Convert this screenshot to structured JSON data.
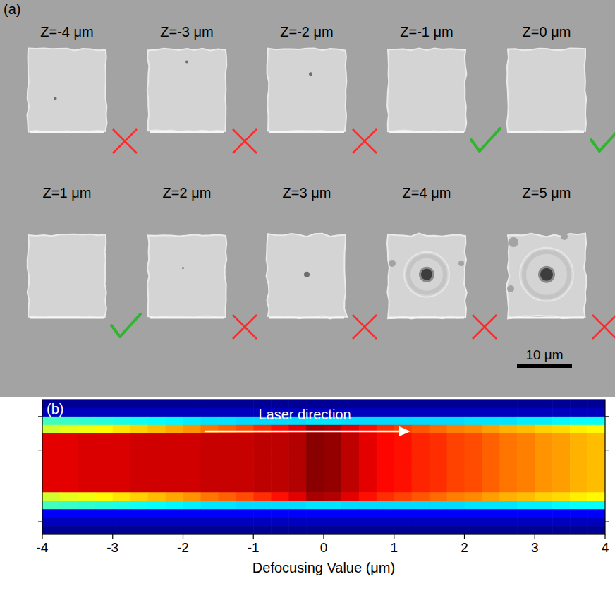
{
  "panel_a": {
    "label": "(a)",
    "scale_bar": "10 μm",
    "samples": [
      {
        "label": "Z=-4 μm",
        "pass": false
      },
      {
        "label": "Z=-3 μm",
        "pass": false
      },
      {
        "label": "Z=-2 μm",
        "pass": false
      },
      {
        "label": "Z=-1 μm",
        "pass": true
      },
      {
        "label": "Z=0 μm",
        "pass": true
      },
      {
        "label": "Z=1 μm",
        "pass": true
      },
      {
        "label": "Z=2 μm",
        "pass": false
      },
      {
        "label": "Z=3 μm",
        "pass": false
      },
      {
        "label": "Z=4 μm",
        "pass": false
      },
      {
        "label": "Z=5 μm",
        "pass": false
      }
    ]
  },
  "panel_b": {
    "label": "(b)"
  },
  "chart_data": {
    "type": "heatmap",
    "xlabel": "Defocusing Value (μm)",
    "annotation": "Laser direction",
    "xlim": [
      -4,
      4
    ],
    "xticks": [
      -4,
      -3,
      -2,
      -1,
      0,
      1,
      2,
      3,
      4
    ],
    "ylim": [
      0,
      16
    ],
    "yticks": [
      2,
      6,
      14.5
    ],
    "tick_labels": "x",
    "x": [
      -3.875,
      -3.625,
      -3.375,
      -3.125,
      -2.875,
      -2.625,
      -2.375,
      -2.125,
      -1.875,
      -1.625,
      -1.375,
      -1.125,
      -0.875,
      -0.625,
      -0.375,
      -0.125,
      0.125,
      0.375,
      0.625,
      0.875,
      1.125,
      1.375,
      1.625,
      1.875,
      2.125,
      2.375,
      2.625,
      2.875,
      3.125,
      3.375,
      3.625,
      3.875
    ],
    "values": [
      [
        0.02,
        0.02,
        0.02,
        0.02,
        0.02,
        0.02,
        0.02,
        0.02,
        0.02,
        0.02,
        0.02,
        0.02,
        0.02,
        0.02,
        0.02,
        0.02,
        0.02,
        0.02,
        0.02,
        0.02,
        0.02,
        0.02,
        0.02,
        0.02,
        0.02,
        0.02,
        0.02,
        0.02,
        0.02,
        0.02,
        0.02,
        0.02
      ],
      [
        0.06,
        0.06,
        0.06,
        0.06,
        0.06,
        0.06,
        0.06,
        0.06,
        0.06,
        0.06,
        0.06,
        0.06,
        0.06,
        0.06,
        0.06,
        0.06,
        0.06,
        0.06,
        0.06,
        0.06,
        0.06,
        0.06,
        0.06,
        0.06,
        0.06,
        0.06,
        0.06,
        0.06,
        0.06,
        0.06,
        0.06,
        0.06
      ],
      [
        0.44,
        0.43,
        0.42,
        0.41,
        0.4,
        0.39,
        0.38,
        0.37,
        0.36,
        0.35,
        0.35,
        0.34,
        0.34,
        0.34,
        0.34,
        0.35,
        0.35,
        0.34,
        0.34,
        0.34,
        0.34,
        0.34,
        0.34,
        0.34,
        0.35,
        0.35,
        0.35,
        0.36,
        0.36,
        0.37,
        0.38,
        0.38
      ],
      [
        0.58,
        0.6,
        0.61,
        0.63,
        0.65,
        0.67,
        0.69,
        0.71,
        0.73,
        0.76,
        0.78,
        0.8,
        0.83,
        0.86,
        0.9,
        0.96,
        0.95,
        0.9,
        0.86,
        0.83,
        0.81,
        0.79,
        0.77,
        0.75,
        0.74,
        0.72,
        0.7,
        0.69,
        0.67,
        0.66,
        0.64,
        0.63
      ],
      [
        0.9,
        0.9,
        0.91,
        0.91,
        0.91,
        0.92,
        0.92,
        0.92,
        0.92,
        0.93,
        0.93,
        0.93,
        0.94,
        0.94,
        0.95,
        0.99,
        0.98,
        0.94,
        0.9,
        0.87,
        0.86,
        0.84,
        0.83,
        0.81,
        0.8,
        0.78,
        0.76,
        0.75,
        0.73,
        0.72,
        0.7,
        0.69
      ],
      [
        0.9,
        0.9,
        0.91,
        0.91,
        0.91,
        0.92,
        0.92,
        0.92,
        0.92,
        0.93,
        0.93,
        0.93,
        0.94,
        0.94,
        0.95,
        0.99,
        0.98,
        0.94,
        0.9,
        0.87,
        0.86,
        0.84,
        0.83,
        0.81,
        0.8,
        0.78,
        0.76,
        0.75,
        0.73,
        0.72,
        0.7,
        0.69
      ],
      [
        0.9,
        0.9,
        0.91,
        0.91,
        0.91,
        0.92,
        0.92,
        0.92,
        0.92,
        0.93,
        0.93,
        0.93,
        0.94,
        0.94,
        0.95,
        0.99,
        0.98,
        0.94,
        0.9,
        0.87,
        0.86,
        0.84,
        0.83,
        0.81,
        0.8,
        0.78,
        0.76,
        0.75,
        0.73,
        0.72,
        0.7,
        0.69
      ],
      [
        0.9,
        0.9,
        0.91,
        0.91,
        0.91,
        0.92,
        0.92,
        0.92,
        0.92,
        0.93,
        0.93,
        0.93,
        0.94,
        0.94,
        0.95,
        0.99,
        0.98,
        0.94,
        0.9,
        0.87,
        0.86,
        0.84,
        0.83,
        0.81,
        0.8,
        0.78,
        0.76,
        0.75,
        0.73,
        0.72,
        0.7,
        0.69
      ],
      [
        0.9,
        0.9,
        0.91,
        0.91,
        0.91,
        0.92,
        0.92,
        0.92,
        0.92,
        0.93,
        0.93,
        0.93,
        0.94,
        0.94,
        0.95,
        0.99,
        0.98,
        0.94,
        0.9,
        0.87,
        0.86,
        0.84,
        0.83,
        0.81,
        0.8,
        0.78,
        0.76,
        0.75,
        0.73,
        0.72,
        0.7,
        0.69
      ],
      [
        0.9,
        0.9,
        0.91,
        0.91,
        0.91,
        0.92,
        0.92,
        0.92,
        0.92,
        0.93,
        0.93,
        0.93,
        0.94,
        0.94,
        0.95,
        0.99,
        0.98,
        0.94,
        0.9,
        0.87,
        0.86,
        0.84,
        0.83,
        0.81,
        0.8,
        0.78,
        0.76,
        0.75,
        0.73,
        0.72,
        0.7,
        0.69
      ],
      [
        0.9,
        0.9,
        0.91,
        0.91,
        0.91,
        0.92,
        0.92,
        0.92,
        0.92,
        0.93,
        0.93,
        0.93,
        0.94,
        0.94,
        0.95,
        0.99,
        0.98,
        0.94,
        0.9,
        0.87,
        0.86,
        0.84,
        0.83,
        0.81,
        0.8,
        0.78,
        0.76,
        0.75,
        0.73,
        0.72,
        0.7,
        0.69
      ],
      [
        0.58,
        0.6,
        0.61,
        0.63,
        0.65,
        0.67,
        0.69,
        0.71,
        0.73,
        0.76,
        0.78,
        0.8,
        0.83,
        0.86,
        0.9,
        0.96,
        0.95,
        0.9,
        0.86,
        0.83,
        0.81,
        0.79,
        0.77,
        0.75,
        0.74,
        0.72,
        0.7,
        0.69,
        0.67,
        0.66,
        0.64,
        0.63
      ],
      [
        0.44,
        0.43,
        0.42,
        0.41,
        0.4,
        0.39,
        0.38,
        0.37,
        0.36,
        0.35,
        0.35,
        0.34,
        0.34,
        0.34,
        0.34,
        0.35,
        0.35,
        0.34,
        0.34,
        0.34,
        0.34,
        0.34,
        0.34,
        0.34,
        0.35,
        0.35,
        0.35,
        0.36,
        0.36,
        0.37,
        0.38,
        0.38
      ],
      [
        0.12,
        0.12,
        0.12,
        0.12,
        0.12,
        0.12,
        0.12,
        0.12,
        0.12,
        0.12,
        0.12,
        0.12,
        0.12,
        0.12,
        0.12,
        0.12,
        0.12,
        0.12,
        0.12,
        0.12,
        0.12,
        0.12,
        0.12,
        0.12,
        0.12,
        0.12,
        0.12,
        0.12,
        0.12,
        0.12,
        0.12,
        0.12
      ],
      [
        0.06,
        0.06,
        0.06,
        0.06,
        0.06,
        0.06,
        0.06,
        0.06,
        0.06,
        0.06,
        0.06,
        0.06,
        0.06,
        0.06,
        0.06,
        0.06,
        0.06,
        0.06,
        0.06,
        0.06,
        0.06,
        0.06,
        0.06,
        0.06,
        0.06,
        0.06,
        0.06,
        0.06,
        0.06,
        0.06,
        0.06,
        0.06
      ],
      [
        0.02,
        0.02,
        0.02,
        0.02,
        0.02,
        0.02,
        0.02,
        0.02,
        0.02,
        0.02,
        0.02,
        0.02,
        0.02,
        0.02,
        0.02,
        0.02,
        0.02,
        0.02,
        0.02,
        0.02,
        0.02,
        0.02,
        0.02,
        0.02,
        0.02,
        0.02,
        0.02,
        0.02,
        0.02,
        0.02,
        0.02,
        0.02
      ]
    ]
  }
}
